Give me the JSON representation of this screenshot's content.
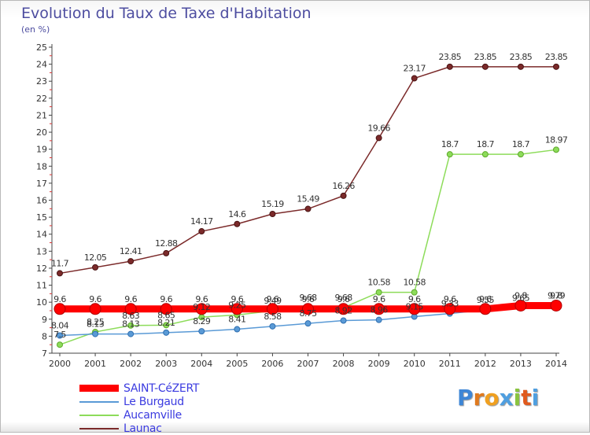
{
  "title": "Evolution du Taux de Taxe d'Habitation",
  "subtitle": "(en %)",
  "chart_data": {
    "type": "line",
    "x": [
      2000,
      2001,
      2002,
      2003,
      2004,
      2005,
      2006,
      2007,
      2008,
      2009,
      2010,
      2011,
      2012,
      2013,
      2014
    ],
    "ylim": [
      7,
      25
    ],
    "y_ticks": [
      7,
      8,
      9,
      10,
      11,
      12,
      13,
      14,
      15,
      16,
      17,
      18,
      19,
      20,
      21,
      22,
      23,
      24,
      25
    ],
    "grid": false,
    "legend_position": "bottom-left",
    "series": [
      {
        "name": "Launac",
        "color": "#7b2a2a",
        "values": [
          11.7,
          12.05,
          12.41,
          12.88,
          14.17,
          14.6,
          15.19,
          15.49,
          16.26,
          19.66,
          23.17,
          23.85,
          23.85,
          23.85,
          23.85
        ],
        "labels": [
          "11.7",
          "12.05",
          "12.41",
          "12.88",
          "14.17",
          "14.6",
          "15.19",
          "15.49",
          "16.26",
          "19.66",
          "23.17",
          "23.85",
          "23.85",
          "23.85",
          "23.85"
        ]
      },
      {
        "name": "Aucamville",
        "color": "#8ddc5a",
        "values": [
          7.5,
          8.25,
          8.63,
          8.65,
          9.12,
          9.25,
          9.49,
          9.68,
          9.68,
          10.58,
          10.58,
          18.7,
          18.7,
          18.7,
          18.97
        ],
        "labels": [
          "7.5",
          "8.25",
          "8.63",
          "8.65",
          "9.12",
          "9.25",
          "9.49",
          "9.68",
          "9.68",
          "10.58",
          "10.58",
          "18.7",
          "18.7",
          "18.7",
          "18.97"
        ]
      },
      {
        "name": "Le Burgaud",
        "color": "#5a9ad6",
        "values": [
          8.04,
          8.13,
          8.13,
          8.21,
          8.29,
          8.41,
          8.58,
          8.75,
          8.92,
          8.96,
          9.15,
          9.33,
          9.55,
          9.65,
          9.79
        ],
        "labels": [
          "8.04",
          "8.13",
          "8.13",
          "8.21",
          "8.29",
          "8.41",
          "8.58",
          "8.75",
          "8.92",
          "8.96",
          "9.15",
          "9.33",
          "9.55",
          "9.65",
          "9.79"
        ]
      },
      {
        "name": "SAINT-CéZERT",
        "color": "#ff0000",
        "values": [
          9.6,
          9.6,
          9.6,
          9.6,
          9.6,
          9.6,
          9.6,
          9.6,
          9.6,
          9.6,
          9.6,
          9.6,
          9.6,
          9.8,
          9.8
        ],
        "labels": [
          "9.6",
          "9.6",
          "9.6",
          "9.6",
          "9.6",
          "9.6",
          "9.6",
          "9.6",
          "9.6",
          "9.6",
          "9.6",
          "9.6",
          "9.6",
          "9.8",
          "9.8"
        ]
      }
    ]
  },
  "legend": [
    {
      "label": "SAINT-CéZERT",
      "color": "#ff0000"
    },
    {
      "label": "Le Burgaud",
      "color": "#5a9ad6"
    },
    {
      "label": "Aucamville",
      "color": "#8ddc5a"
    },
    {
      "label": "Launac",
      "color": "#7b2a2a"
    }
  ],
  "logo": {
    "letters": [
      "P",
      "r",
      "o",
      "x",
      "i",
      "t",
      "i"
    ],
    "colors": [
      "#3e86d6",
      "#e07a1e",
      "#f0a020",
      "#4f9fe0",
      "#8ac43f",
      "#e05a1e",
      "#4f9fe0"
    ]
  }
}
